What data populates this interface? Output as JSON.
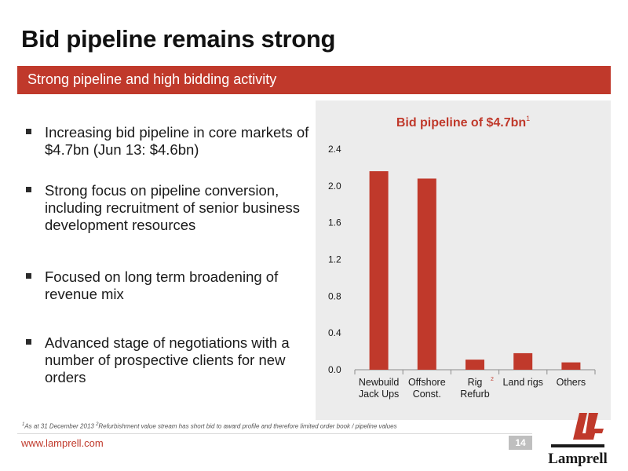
{
  "slide": {
    "title": "Bid pipeline remains strong",
    "subtitle": "Strong pipeline and high bidding activity"
  },
  "bullets": [
    "Increasing bid pipeline in core markets of $4.7bn (Jun 13: $4.6bn)",
    "Strong focus on pipeline conversion, including recruitment of senior business development resources",
    "Focused on long term broadening of revenue mix",
    "Advanced stage of negotiations with a number of prospective clients for new orders"
  ],
  "chart_data": {
    "type": "bar",
    "title": "Bid pipeline of $4.7bn",
    "title_superscript": "1",
    "categories": [
      {
        "lines": [
          "Newbuild",
          "Jack Ups"
        ],
        "superscript": ""
      },
      {
        "lines": [
          "Offshore",
          "Const."
        ],
        "superscript": ""
      },
      {
        "lines": [
          "Rig",
          "Refurb"
        ],
        "superscript": "2"
      },
      {
        "lines": [
          "Land rigs"
        ],
        "superscript": ""
      },
      {
        "lines": [
          "Others"
        ],
        "superscript": ""
      }
    ],
    "values": [
      2.16,
      2.08,
      0.11,
      0.18,
      0.08
    ],
    "ylim": [
      0,
      2.4
    ],
    "yticks": [
      "0.0",
      "0.4",
      "0.8",
      "1.2",
      "1.6",
      "2.0",
      "2.4"
    ],
    "bar_color": "#c0392b",
    "title_color": "#c0392b",
    "grid": false,
    "legend": "none"
  },
  "footnote": {
    "n1": "1",
    "t1": "As at 31 December 2013 ",
    "n2": "2",
    "t2": "Refurbishment value stream has short bid to award profile and therefore limited order book / pipeline values"
  },
  "footer": {
    "url": "www.lamprell.com",
    "page_number": "14",
    "logo_text": "Lamprell"
  },
  "colors": {
    "accent": "#c0392b",
    "panel": "#ececec"
  }
}
